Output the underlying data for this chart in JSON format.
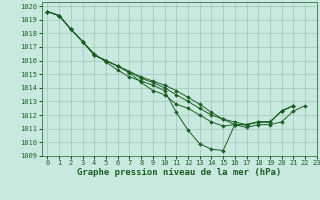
{
  "title": "Graphe pression niveau de la mer (hPa)",
  "bg_color": "#c8e8e0",
  "grid_color": "#a0c8b8",
  "line_color": "#1a6020",
  "marker_color": "#1a6020",
  "xlim": [
    -0.5,
    23
  ],
  "ylim": [
    1009,
    1020.3
  ],
  "xticks": [
    0,
    1,
    2,
    3,
    4,
    5,
    6,
    7,
    8,
    9,
    10,
    11,
    12,
    13,
    14,
    15,
    16,
    17,
    18,
    19,
    20,
    21,
    22,
    23
  ],
  "yticks": [
    1009,
    1010,
    1011,
    1012,
    1013,
    1014,
    1015,
    1016,
    1017,
    1018,
    1019,
    1020
  ],
  "series": [
    [
      1019.6,
      1019.3,
      1018.3,
      1017.4,
      1016.5,
      1015.9,
      1015.3,
      1014.8,
      1014.5,
      1014.2,
      1013.8,
      1012.2,
      1010.9,
      1009.9,
      1009.5,
      1009.4,
      1011.3,
      1011.3,
      1011.5,
      1011.5,
      1012.3,
      1012.7,
      null,
      null
    ],
    [
      1019.6,
      1019.3,
      1018.3,
      1017.4,
      1016.4,
      1016.0,
      1015.6,
      1015.1,
      1014.4,
      1013.8,
      1013.5,
      1012.8,
      1012.5,
      1012.0,
      1011.5,
      1011.2,
      1011.3,
      1011.3,
      1011.5,
      1011.5,
      1012.3,
      1012.7,
      null,
      null
    ],
    [
      1019.6,
      1019.3,
      1018.3,
      1017.4,
      1016.4,
      1016.0,
      1015.6,
      1015.2,
      1014.7,
      1014.4,
      1014.0,
      1013.5,
      1013.0,
      1012.5,
      1012.0,
      1011.7,
      1011.5,
      1011.3,
      1011.5,
      1011.5,
      1012.3,
      1012.7,
      null,
      null
    ],
    [
      1019.6,
      1019.3,
      1018.3,
      1017.4,
      1016.4,
      1016.0,
      1015.6,
      1015.2,
      1014.8,
      1014.5,
      1014.2,
      1013.8,
      1013.3,
      1012.8,
      1012.2,
      1011.7,
      1011.3,
      1011.1,
      1011.3,
      1011.3,
      1011.5,
      1012.3,
      1012.7,
      null
    ]
  ],
  "title_fontsize": 6.5,
  "tick_fontsize": 5.0,
  "linewidth": 0.7,
  "markersize": 2.0
}
